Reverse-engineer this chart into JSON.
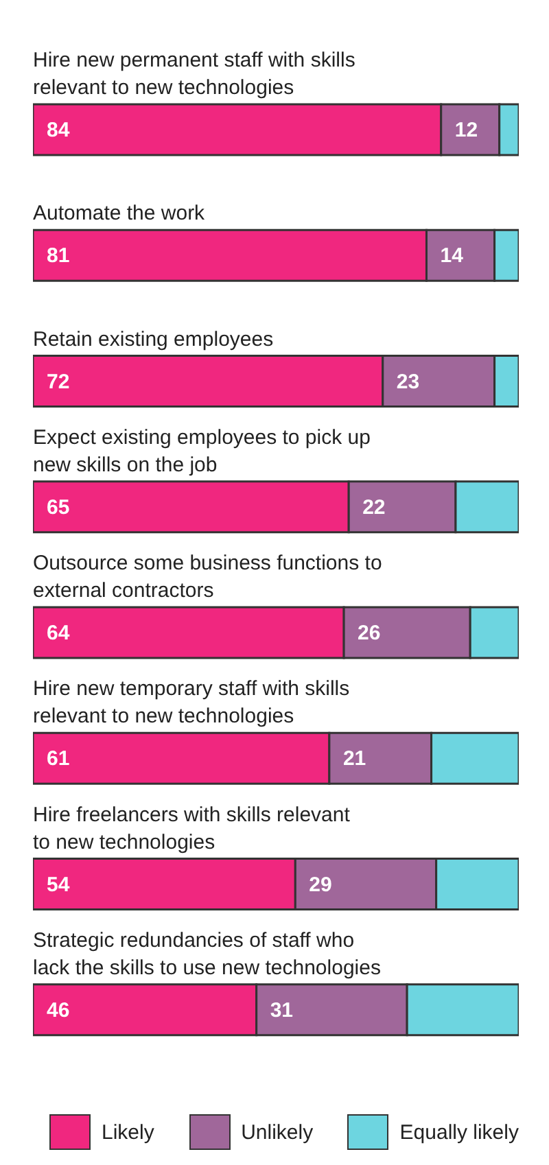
{
  "chart_data": {
    "type": "bar",
    "orientation": "horizontal",
    "stacked": true,
    "legend": "bottom",
    "categories": [
      "Hire new permanent staff with skills relevant to new technologies",
      "Automate the work",
      "Retain existing employees",
      "Expect existing employees to pick up new skills on the job",
      "Outsource some business functions to external contractors",
      "Hire new temporary staff with skills relevant to new technologies",
      "Hire freelancers with skills relevant to new technologies",
      "Strategic redundancies of staff who lack the skills to use new technologies"
    ],
    "series": [
      {
        "name": "Likely",
        "color": "#f0277f",
        "values": [
          84,
          81,
          72,
          65,
          64,
          61,
          54,
          46
        ],
        "value_labels": [
          "84",
          "81",
          "72",
          "65",
          "64",
          "61",
          "54",
          "46"
        ]
      },
      {
        "name": "Unlikely",
        "color": "#a0679a",
        "values": [
          12,
          14,
          23,
          22,
          26,
          21,
          29,
          31
        ],
        "value_labels": [
          "12",
          "14",
          "23",
          "22",
          "26",
          "21",
          "29",
          "31"
        ]
      },
      {
        "name": "Equally likely",
        "color": "#6dd5e0",
        "values": [
          4,
          5,
          5,
          13,
          10,
          18,
          17,
          23
        ]
      }
    ]
  }
}
